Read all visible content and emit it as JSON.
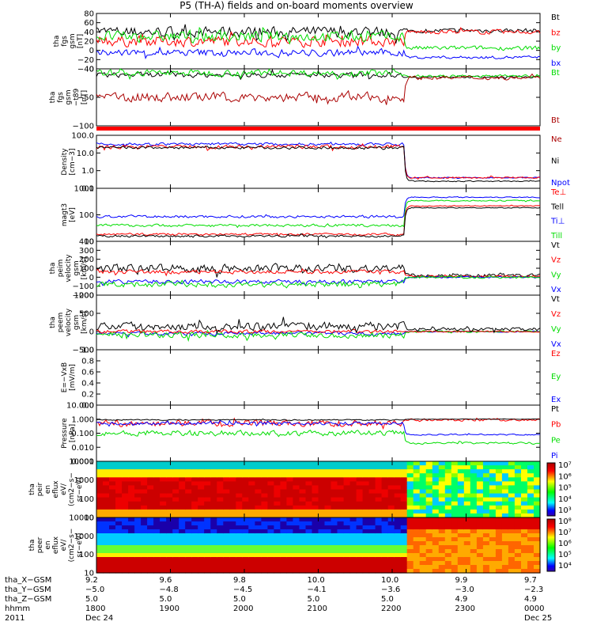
{
  "title": "P5 (TH-A) fields and on-board moments overview",
  "colors": {
    "black": "#000000",
    "red": "#ff0000",
    "green": "#00dd00",
    "blue": "#0000ff",
    "darkred": "#aa0000"
  },
  "chart_data": {
    "type": "line",
    "panels": [
      {
        "id": "fgs",
        "ylabel": [
          "tha",
          "fgs",
          "gsm",
          "[nT]"
        ],
        "ticks": [
          "80",
          "60",
          "40",
          "20",
          "0",
          "−20",
          "−40"
        ],
        "ylim": [
          -40,
          80
        ],
        "legend": [
          {
            "label": "Bt",
            "color": "black"
          },
          {
            "label": "bz",
            "color": "red"
          },
          {
            "label": "by",
            "color": "green"
          },
          {
            "label": "bx",
            "color": "blue"
          }
        ],
        "series": [
          {
            "color": "black",
            "before": 40,
            "after": 43,
            "noise": 15
          },
          {
            "color": "red",
            "before": 20,
            "after": 40,
            "noise": 15
          },
          {
            "color": "green",
            "before": 30,
            "after": 5,
            "noise": 15
          },
          {
            "color": "blue",
            "before": -5,
            "after": -15,
            "noise": 10
          }
        ]
      },
      {
        "id": "t89",
        "ylabel": [
          "tha",
          "fgs",
          "gsm",
          "−t89",
          "[nT]"
        ],
        "ticks": [
          "0",
          "−50",
          "−100"
        ],
        "ylim": [
          -120,
          20
        ],
        "legend": [
          {
            "label": "Bt",
            "color": "green"
          },
          {
            "label": "Bt",
            "color": "darkred"
          }
        ],
        "series": [
          {
            "color": "black",
            "before": 5,
            "after": 0,
            "noise": 8
          },
          {
            "color": "green",
            "before": 10,
            "after": 2,
            "noise": 10
          },
          {
            "color": "darkred",
            "before": -50,
            "after": -2,
            "noise": 15
          }
        ]
      },
      {
        "id": "density",
        "ylabel": [
          "Density",
          "[cm−3]"
        ],
        "ticks": [
          "100.0",
          "10.0",
          "1.0",
          "0.1"
        ],
        "ylim": [
          -1,
          2
        ],
        "legend": [
          {
            "label": "Ne",
            "color": "darkred"
          },
          {
            "label": "Ni",
            "color": "black"
          },
          {
            "label": "Npot",
            "color": "blue"
          }
        ],
        "series": [
          {
            "color": "blue",
            "before": 1.5,
            "after": -0.4,
            "noise": 0.1
          },
          {
            "color": "red",
            "before": 1.35,
            "after": -0.4,
            "noise": 0.15
          },
          {
            "color": "black",
            "before": 1.3,
            "after": -0.6,
            "noise": 0.1
          }
        ]
      },
      {
        "id": "temp",
        "ylabel": [
          "magt3",
          "[eV]"
        ],
        "ticks": [
          "1000",
          "100",
          "10"
        ],
        "ylim": [
          1,
          4
        ],
        "legend": [
          {
            "label": "Te⊥",
            "color": "red"
          },
          {
            "label": "Tell",
            "color": "black"
          },
          {
            "label": "Ti⊥",
            "color": "blue"
          },
          {
            "label": "Till",
            "color": "green"
          }
        ],
        "series": [
          {
            "color": "blue",
            "before": 2.4,
            "after": 3.5,
            "noise": 0.1
          },
          {
            "color": "green",
            "before": 1.9,
            "after": 3.3,
            "noise": 0.1
          },
          {
            "color": "red",
            "before": 1.4,
            "after": 3.0,
            "noise": 0.08
          },
          {
            "color": "black",
            "before": 1.3,
            "after": 2.9,
            "noise": 0.08
          }
        ]
      },
      {
        "id": "peim",
        "ylabel": [
          "tha",
          "peim",
          "velocity",
          "gsm",
          "[km/s]"
        ],
        "ticks": [
          "400",
          "300",
          "200",
          "100",
          "0",
          "−100",
          "−200"
        ],
        "ylim": [
          -200,
          400
        ],
        "legend": [
          {
            "label": "Vt",
            "color": "black"
          },
          {
            "label": "Vz",
            "color": "red"
          },
          {
            "label": "Vy",
            "color": "green"
          },
          {
            "label": "Vx",
            "color": "blue"
          }
        ],
        "series": [
          {
            "color": "black",
            "before": 100,
            "after": 20,
            "noise": 60
          },
          {
            "color": "red",
            "before": 60,
            "after": 10,
            "noise": 30
          },
          {
            "color": "blue",
            "before": -50,
            "after": 0,
            "noise": 30
          },
          {
            "color": "green",
            "before": -80,
            "after": 0,
            "noise": 40
          }
        ]
      },
      {
        "id": "peem",
        "ylabel": [
          "tha",
          "peem",
          "velocity",
          "gsm",
          "[km/s]"
        ],
        "ticks": [
          "1000",
          "500",
          "0",
          "−500"
        ],
        "ylim": [
          -500,
          1000
        ],
        "legend": [
          {
            "label": "Vt",
            "color": "black"
          },
          {
            "label": "Vz",
            "color": "red"
          },
          {
            "label": "Vy",
            "color": "green"
          },
          {
            "label": "Vx",
            "color": "blue"
          }
        ],
        "series": [
          {
            "color": "blue",
            "before": -50,
            "after": 0,
            "noise": 60
          },
          {
            "color": "green",
            "before": -100,
            "after": 0,
            "noise": 100
          },
          {
            "color": "red",
            "before": 0,
            "after": 0,
            "noise": 60
          },
          {
            "color": "black",
            "before": 150,
            "after": 60,
            "noise": 150
          }
        ]
      },
      {
        "id": "efield",
        "ylabel": [
          "E=−VxB",
          "[mV/m]"
        ],
        "ticks": [
          "1.0",
          "0.8",
          "0.6",
          "0.4",
          "0.2",
          "0.0"
        ],
        "ylim": [
          0,
          1
        ],
        "legend": [
          {
            "label": "Ez",
            "color": "red"
          },
          {
            "label": "Ey",
            "color": "green"
          },
          {
            "label": "Ex",
            "color": "blue"
          }
        ],
        "series": []
      },
      {
        "id": "pressure",
        "ylabel": [
          "Pressure",
          "[nPa]"
        ],
        "ticks": [
          "10.000",
          "1.000",
          "0.100",
          "0.010",
          "0.001"
        ],
        "ylim": [
          -3,
          1
        ],
        "legend": [
          {
            "label": "Pt",
            "color": "black"
          },
          {
            "label": "Pb",
            "color": "red"
          },
          {
            "label": "Pe",
            "color": "green"
          },
          {
            "label": "Pi",
            "color": "blue"
          }
        ],
        "series": [
          {
            "color": "red",
            "before": -0.3,
            "after": -0.05,
            "noise": 0.3
          },
          {
            "color": "blue",
            "before": -0.3,
            "after": -1.1,
            "noise": 0.15
          },
          {
            "color": "green",
            "before": -1.0,
            "after": -1.7,
            "noise": 0.25
          },
          {
            "color": "black",
            "before": -0.05,
            "after": 0,
            "noise": 0.05
          }
        ]
      },
      {
        "id": "peir",
        "ylabel": [
          "tha",
          "peir",
          "en",
          "eflux",
          "eV/",
          "(cm2−s−",
          "sr−eV)"
        ],
        "ticks": [
          "10000",
          "1000",
          "100",
          "10"
        ],
        "ylim": [
          1,
          4
        ],
        "colorbar": [
          "10⁷",
          "10⁶",
          "10⁵",
          "10⁴",
          "10³"
        ],
        "series": []
      },
      {
        "id": "peer",
        "ylabel": [
          "tha",
          "peer",
          "en",
          "eflux",
          "eV/",
          "(cm2−s−",
          "sr−eV)"
        ],
        "ticks": [
          "10000",
          "1000",
          "100",
          "10"
        ],
        "ylim": [
          1,
          4
        ],
        "colorbar": [
          "10⁸",
          "10⁷",
          "10⁶",
          "10⁵",
          "10⁴"
        ],
        "series": []
      }
    ],
    "x_axis": {
      "rows": [
        {
          "label": "tha_X−GSM",
          "values": [
            "9.2",
            "9.6",
            "9.8",
            "10.0",
            "10.0",
            "9.9",
            "9.7"
          ]
        },
        {
          "label": "tha_Y−GSM",
          "values": [
            "−5.0",
            "−4.8",
            "−4.5",
            "−4.1",
            "−3.6",
            "−3.0",
            "−2.3"
          ]
        },
        {
          "label": "tha_Z−GSM",
          "values": [
            "5.0",
            "5.0",
            "5.0",
            "5.0",
            "5.0",
            "4.9",
            "4.9"
          ]
        },
        {
          "label": "hhmm",
          "values": [
            "1800",
            "1900",
            "2000",
            "2100",
            "2200",
            "2300",
            "0000"
          ]
        },
        {
          "label": "2011",
          "values": [
            "Dec 24",
            "",
            "",
            "",
            "",
            "",
            "Dec 25"
          ]
        }
      ],
      "ticks": [
        "1800",
        "1900",
        "2000",
        "2100",
        "2200",
        "2300",
        "0000"
      ]
    }
  }
}
